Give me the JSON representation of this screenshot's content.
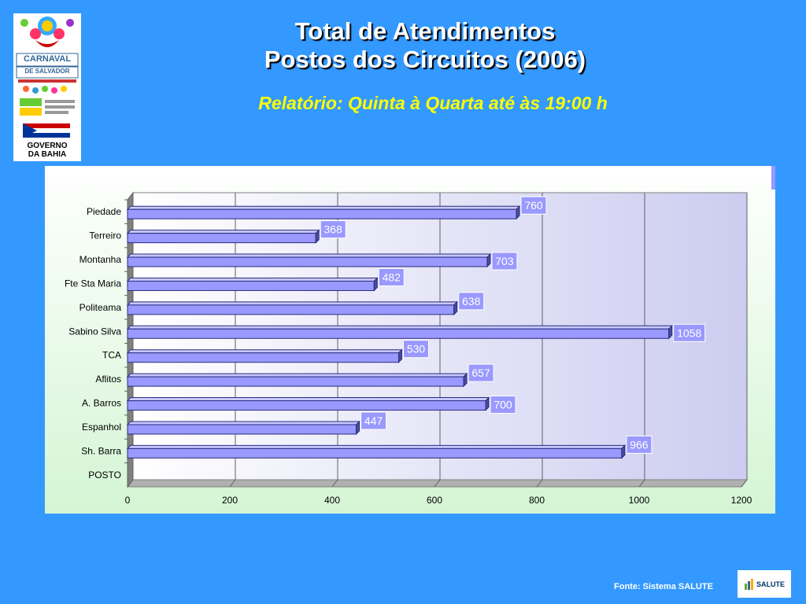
{
  "slide": {
    "title_line1": "Total de Atendimentos",
    "title_line2": "Postos dos Circuitos  (2006)",
    "subtitle": "Relatório:  Quinta à Quarta até às 19:00 h",
    "source": "Fonte: Sistema SALUTE"
  },
  "logos": {
    "carnaval": {
      "line1": "CARNAVAL",
      "line2": "DE SALVADOR",
      "line3": "GOVERNO",
      "line4": "DA BAHIA"
    },
    "salute": {
      "label": "SALUTE"
    }
  },
  "colors": {
    "background": "#3399ff",
    "bar": "#9999ff",
    "bar_edge": "#2b2b80",
    "label_box": "#9999ff",
    "title": "#ffffff",
    "subtitle": "#ffff00"
  },
  "chart_data": {
    "type": "bar",
    "orientation": "horizontal",
    "categories": [
      "Piedade",
      "Terreiro",
      "Montanha",
      "Fte Sta Maria",
      "Politeama",
      "Sabino Silva",
      "TCA",
      "Aflitos",
      "A. Barros",
      "Espanhol",
      "Sh. Barra",
      "POSTO"
    ],
    "values": [
      760,
      368,
      703,
      482,
      638,
      1058,
      530,
      657,
      700,
      447,
      966,
      null
    ],
    "data_labels": [
      "760",
      "368",
      "703",
      "482",
      "638",
      "1058",
      "530",
      "657",
      "700",
      "447",
      "966",
      ""
    ],
    "xlim": [
      0,
      1200
    ],
    "xticks": [
      0,
      200,
      400,
      600,
      800,
      1000,
      1200
    ],
    "xtick_labels": [
      "0",
      "200",
      "400",
      "600",
      "800",
      "1000",
      "1200"
    ],
    "grid": true,
    "style": "3d"
  }
}
